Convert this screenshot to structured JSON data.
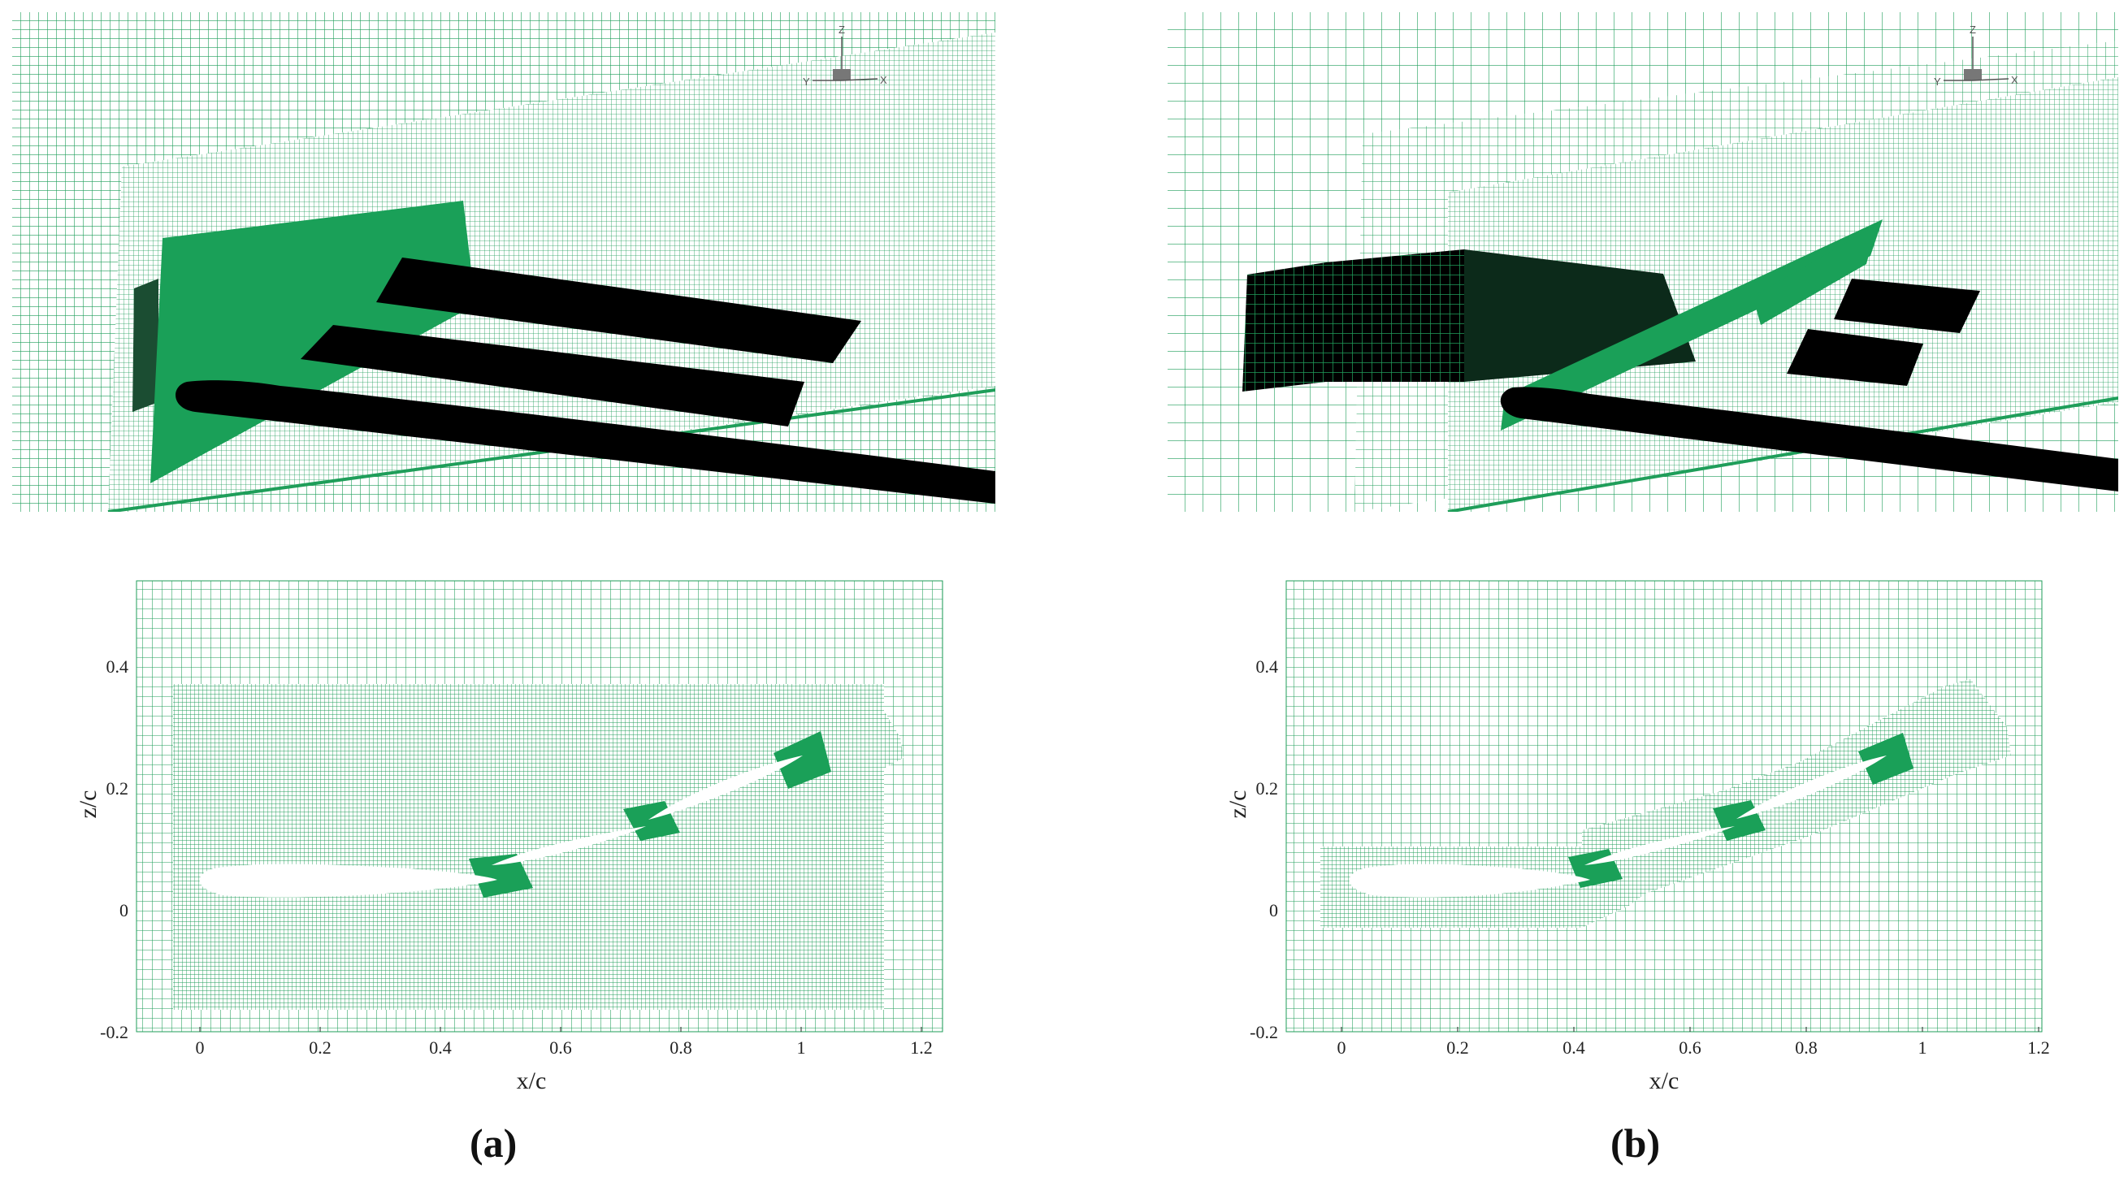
{
  "figure": {
    "panels": [
      {
        "id": "a",
        "label": "(a)",
        "axis_triad": {
          "z": "Z",
          "y": "Y",
          "x": "X"
        },
        "plot": {
          "xlabel": "x/c",
          "ylabel": "z/c",
          "xticks": [
            "0",
            "0.2",
            "0.4",
            "0.6",
            "0.8",
            "1",
            "1.2"
          ],
          "yticks": [
            "-0.2",
            "0",
            "0.2",
            "0.4"
          ]
        }
      },
      {
        "id": "b",
        "label": "(b)",
        "axis_triad": {
          "z": "Z",
          "y": "Y",
          "x": "X"
        },
        "plot": {
          "xlabel": "x/c",
          "ylabel": "z/c",
          "xticks": [
            "0",
            "0.2",
            "0.4",
            "0.6",
            "0.8",
            "1",
            "1.2"
          ],
          "yticks": [
            "-0.2",
            "0",
            "0.2",
            "0.4"
          ]
        }
      }
    ],
    "colors": {
      "grid": "#1f9e5a",
      "fill": "#1aa058",
      "body": "#000000",
      "background": "#ffffff"
    }
  }
}
